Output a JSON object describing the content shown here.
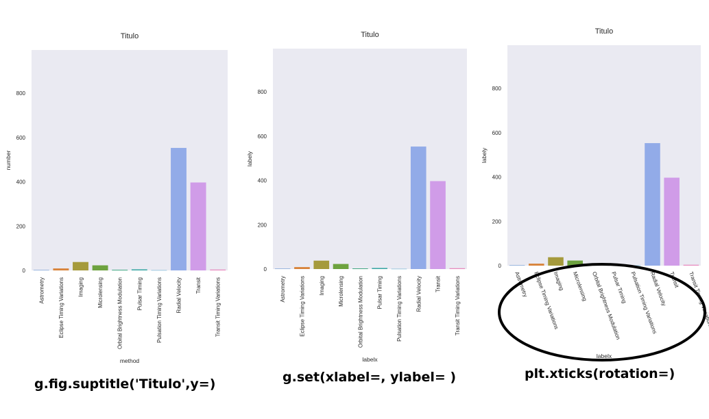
{
  "chart_data": [
    {
      "type": "bar",
      "title": "Titulo",
      "xlabel": "method",
      "ylabel": "number",
      "categories": [
        "Astrometry",
        "Eclipse Timing Variations",
        "Imaging",
        "Microlensing",
        "Orbital Brightness Modulation",
        "Pulsar Timing",
        "Pulsation Timing Variations",
        "Radial Velocity",
        "Transit",
        "Transit Timing Variations"
      ],
      "values": [
        2,
        9,
        38,
        23,
        3,
        5,
        1,
        553,
        397,
        4
      ],
      "yticks": [
        0,
        200,
        400,
        600,
        800
      ],
      "ylim": [
        0,
        995
      ],
      "colors": [
        "#6f99d4",
        "#d8843c",
        "#a59a3c",
        "#6da23f",
        "#3ba57f",
        "#3ea8a6",
        "#4aa3c8",
        "#92abe8",
        "#d09ce8",
        "#e78cbf"
      ]
    },
    {
      "type": "bar",
      "title": "Titulo",
      "xlabel": "labelx",
      "ylabel": "labely",
      "categories": [
        "Astrometry",
        "Eclipse Timing Variations",
        "Imaging",
        "Microlensing",
        "Orbital Brightness Modulation",
        "Pulsar Timing",
        "Pulsation Timing Variations",
        "Radial Velocity",
        "Transit",
        "Transit Timing Variations"
      ],
      "values": [
        2,
        9,
        38,
        23,
        3,
        5,
        1,
        553,
        397,
        4
      ],
      "yticks": [
        0,
        200,
        400,
        600,
        800
      ],
      "ylim": [
        0,
        995
      ],
      "colors": [
        "#6f99d4",
        "#d8843c",
        "#a59a3c",
        "#6da23f",
        "#3ba57f",
        "#3ea8a6",
        "#4aa3c8",
        "#92abe8",
        "#d09ce8",
        "#e78cbf"
      ]
    },
    {
      "type": "bar",
      "title": "Titulo",
      "xlabel": "labelx",
      "ylabel": "labely",
      "categories": [
        "Astrometry",
        "Eclipse Timing Variations",
        "Imaging",
        "Microlensing",
        "Orbital Brightness Modulation",
        "Pulsar Timing",
        "Pulsation Timing Variations",
        "Radial Velocity",
        "Transit",
        "Transit Timing Variations"
      ],
      "values": [
        2,
        9,
        38,
        23,
        3,
        5,
        1,
        553,
        397,
        4
      ],
      "yticks": [
        0,
        200,
        400,
        600,
        800
      ],
      "ylim": [
        0,
        995
      ],
      "colors": [
        "#6f99d4",
        "#d8843c",
        "#a59a3c",
        "#6da23f",
        "#3ba57f",
        "#3ea8a6",
        "#4aa3c8",
        "#92abe8",
        "#d09ce8",
        "#e78cbf"
      ]
    }
  ],
  "captions": [
    "g.fig.suptitle('Titulo',y=)",
    "g.set(xlabel=, ylabel= )",
    "plt.xticks(rotation=)"
  ]
}
